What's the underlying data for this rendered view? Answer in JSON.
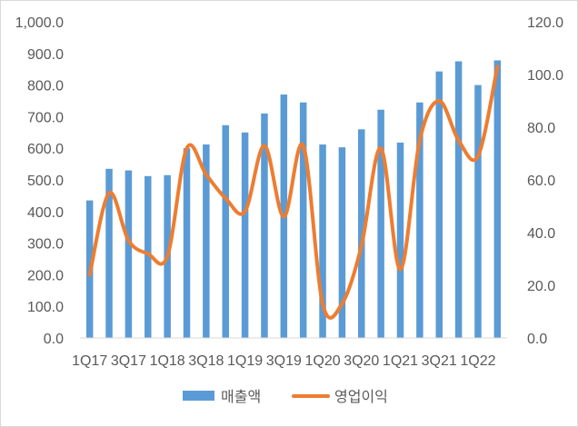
{
  "chart_data": {
    "type": "bar",
    "categories": [
      "1Q17",
      "2Q17",
      "3Q17",
      "4Q17",
      "1Q18",
      "2Q18",
      "3Q18",
      "4Q18",
      "1Q19",
      "2Q19",
      "3Q19",
      "4Q19",
      "1Q20",
      "2Q20",
      "3Q20",
      "4Q20",
      "1Q21",
      "2Q21",
      "3Q21",
      "4Q21",
      "1Q22",
      "2Q22"
    ],
    "x_tick_labels": [
      "1Q17",
      "3Q17",
      "1Q18",
      "3Q18",
      "1Q19",
      "3Q19",
      "1Q20",
      "3Q20",
      "1Q21",
      "3Q21",
      "1Q22"
    ],
    "series": [
      {
        "name": "매출액",
        "type": "bar",
        "axis": "left",
        "color": "#5b9bd5",
        "values": [
          435,
          535,
          530,
          512,
          515,
          600,
          612,
          673,
          650,
          710,
          770,
          745,
          612,
          603,
          660,
          722,
          618,
          745,
          843,
          875,
          800,
          878
        ]
      },
      {
        "name": "영업이익",
        "type": "line",
        "axis": "right",
        "color": "#ed7d31",
        "values": [
          24,
          55,
          37,
          32,
          31,
          72,
          62,
          53,
          48,
          73,
          46,
          73,
          13,
          13,
          35,
          72,
          26,
          75,
          90,
          75,
          69,
          103
        ]
      }
    ],
    "y_left": {
      "min": 0,
      "max": 1000,
      "step": 100,
      "tick_labels": [
        "0.0",
        "100.0",
        "200.0",
        "300.0",
        "400.0",
        "500.0",
        "600.0",
        "700.0",
        "800.0",
        "900.0",
        "1,000.0"
      ]
    },
    "y_right": {
      "min": 0,
      "max": 120,
      "step": 20,
      "tick_labels": [
        "0.0",
        "20.0",
        "40.0",
        "60.0",
        "80.0",
        "100.0",
        "120.0"
      ]
    },
    "legend_position": "bottom",
    "grid": false
  }
}
